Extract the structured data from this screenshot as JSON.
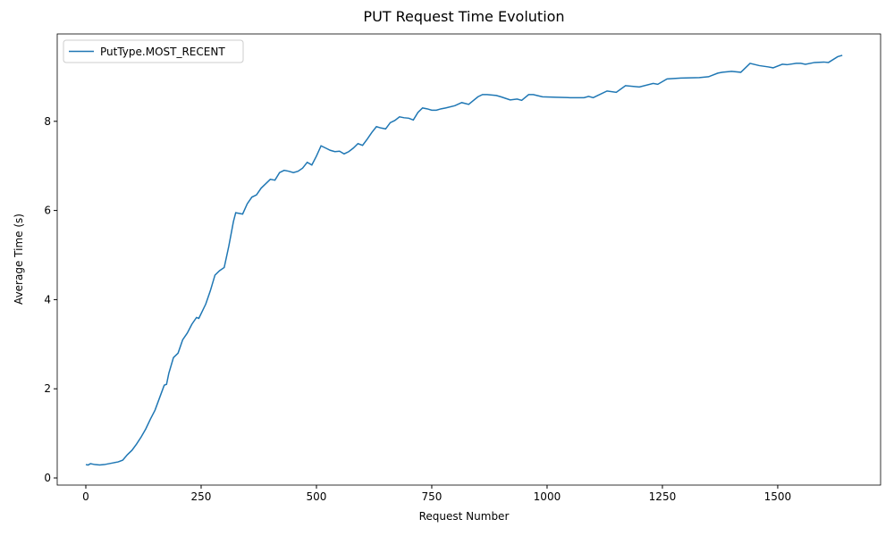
{
  "chart_data": {
    "type": "line",
    "title": "PUT Request Time Evolution",
    "x_label": "Request Number",
    "y_label": "Average Time (s)",
    "x": [
      0,
      5,
      10,
      20,
      30,
      40,
      50,
      60,
      70,
      80,
      90,
      100,
      110,
      120,
      130,
      140,
      150,
      160,
      170,
      175,
      180,
      190,
      200,
      210,
      220,
      230,
      240,
      245,
      260,
      270,
      280,
      290,
      300,
      310,
      320,
      325,
      340,
      350,
      360,
      370,
      380,
      390,
      400,
      410,
      420,
      430,
      440,
      450,
      460,
      470,
      480,
      490,
      500,
      510,
      520,
      530,
      540,
      550,
      560,
      570,
      580,
      590,
      600,
      610,
      620,
      630,
      640,
      650,
      660,
      670,
      680,
      690,
      700,
      710,
      720,
      730,
      740,
      750,
      760,
      770,
      780,
      800,
      815,
      830,
      850,
      860,
      870,
      890,
      900,
      920,
      935,
      945,
      960,
      970,
      990,
      1020,
      1050,
      1080,
      1090,
      1100,
      1110,
      1130,
      1150,
      1170,
      1200,
      1230,
      1240,
      1260,
      1290,
      1330,
      1350,
      1370,
      1380,
      1400,
      1420,
      1440,
      1460,
      1480,
      1490,
      1510,
      1520,
      1540,
      1550,
      1560,
      1580,
      1600,
      1610,
      1630,
      1640
    ],
    "series": [
      {
        "name": "PutType.MOST_RECENT",
        "color": "#1f77b4",
        "values": [
          0.3,
          0.29,
          0.32,
          0.3,
          0.29,
          0.3,
          0.32,
          0.34,
          0.36,
          0.4,
          0.52,
          0.62,
          0.76,
          0.92,
          1.1,
          1.32,
          1.52,
          1.8,
          2.08,
          2.1,
          2.35,
          2.7,
          2.8,
          3.1,
          3.25,
          3.45,
          3.6,
          3.58,
          3.9,
          4.2,
          4.55,
          4.65,
          4.72,
          5.2,
          5.75,
          5.95,
          5.92,
          6.15,
          6.3,
          6.35,
          6.5,
          6.6,
          6.7,
          6.68,
          6.85,
          6.9,
          6.88,
          6.85,
          6.88,
          6.95,
          7.08,
          7.02,
          7.22,
          7.45,
          7.4,
          7.35,
          7.32,
          7.33,
          7.27,
          7.32,
          7.4,
          7.5,
          7.46,
          7.6,
          7.75,
          7.88,
          7.85,
          7.83,
          7.97,
          8.02,
          8.1,
          8.08,
          8.07,
          8.03,
          8.2,
          8.3,
          8.28,
          8.25,
          8.25,
          8.28,
          8.3,
          8.35,
          8.42,
          8.38,
          8.55,
          8.6,
          8.6,
          8.58,
          8.55,
          8.48,
          8.5,
          8.47,
          8.6,
          8.6,
          8.55,
          8.54,
          8.53,
          8.53,
          8.56,
          8.53,
          8.58,
          8.68,
          8.65,
          8.8,
          8.77,
          8.85,
          8.83,
          8.95,
          8.97,
          8.98,
          9.0,
          9.08,
          9.1,
          9.12,
          9.1,
          9.3,
          9.25,
          9.22,
          9.2,
          9.28,
          9.27,
          9.3,
          9.3,
          9.28,
          9.32,
          9.33,
          9.32,
          9.45,
          9.48
        ]
      }
    ],
    "xlim": [
      -62,
      1723
    ],
    "xticks": [
      0,
      250,
      500,
      750,
      1000,
      1250,
      1500
    ],
    "ylim": [
      -0.16,
      9.96
    ],
    "yticks": [
      0,
      2,
      4,
      6,
      8
    ],
    "legend": "upper left"
  }
}
